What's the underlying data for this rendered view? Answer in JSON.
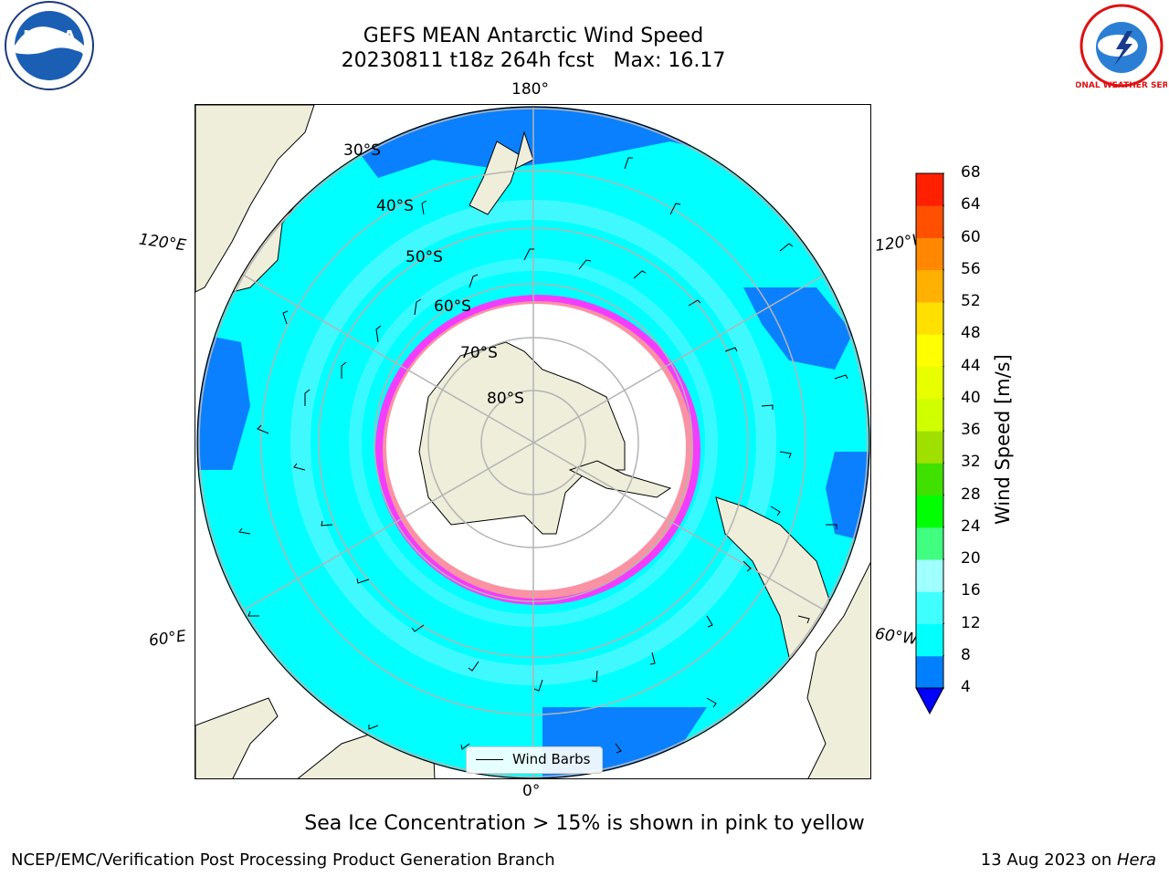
{
  "title": {
    "line1": "GEFS MEAN Antarctic Wind Speed",
    "line2": "20230811 t18z 264h fcst   Max: 16.17"
  },
  "map": {
    "projection": "south-polar-stereographic",
    "longitude_labels": {
      "top": "180°",
      "bottom": "0°",
      "upper_left": "120°E",
      "upper_right": "120°W",
      "lower_left": "60°E",
      "lower_right": "60°W"
    },
    "latitude_labels": [
      "30°S",
      "40°S",
      "50°S",
      "60°S",
      "70°S",
      "80°S"
    ],
    "legend": {
      "label": "Wind Barbs"
    },
    "colors": {
      "land": "#eeeedb",
      "ocean_cyan": "#00ffff",
      "ocean_light": "#4ff7ff",
      "ocean_blue": "#0a80ff",
      "sea_ice": "#ff33ff",
      "grid": "#b4b4b4"
    }
  },
  "colorbar": {
    "label": "Wind Speed [m/s]",
    "ticks": [
      "4",
      "8",
      "12",
      "16",
      "20",
      "24",
      "28",
      "32",
      "36",
      "40",
      "44",
      "48",
      "52",
      "56",
      "60",
      "64",
      "68"
    ],
    "colors": [
      "#0080ff",
      "#00ffff",
      "#40ffff",
      "#a0ffff",
      "#40ff80",
      "#00ff00",
      "#40e000",
      "#a0e000",
      "#d0ff00",
      "#e8ff00",
      "#ffff00",
      "#ffe000",
      "#ffb000",
      "#ff8800",
      "#ff5000",
      "#ff2000"
    ],
    "extend_color": "#0000ff"
  },
  "footer": {
    "note": "Sea Ice Concentration > 15% is shown in pink to yellow",
    "left": "NCEP/EMC/Verification Post Processing Product Generation Branch",
    "right_prefix": "13 Aug 2023 on ",
    "right_machine": "Hera"
  },
  "logos": {
    "noaa": "NOAA",
    "nws": "NATIONAL WEATHER SERVICE"
  }
}
